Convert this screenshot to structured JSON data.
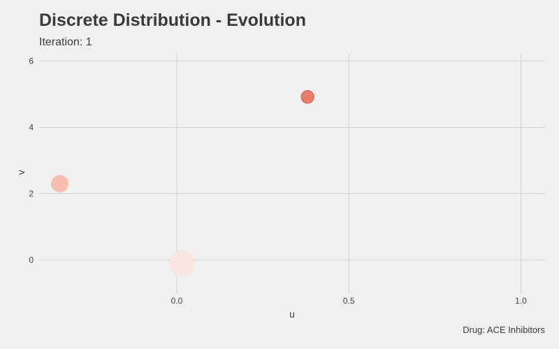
{
  "chart_data": {
    "type": "scatter",
    "title": "Discrete Distribution - Evolution",
    "subtitle": "Iteration: 1",
    "caption": "Drug: ACE Inhibitors",
    "xlabel": "u",
    "ylabel": "v",
    "xlim": [
      -0.4,
      1.07
    ],
    "ylim": [
      -1.0,
      6.2
    ],
    "x_ticks": [
      0.0,
      0.5,
      1.0
    ],
    "x_tick_labels": [
      "0.0",
      "0.5",
      "1.0"
    ],
    "y_ticks": [
      0,
      2,
      4,
      6
    ],
    "y_tick_labels": [
      "0",
      "2",
      "4",
      "6"
    ],
    "grid": true,
    "legend": "none",
    "points": [
      {
        "x": 0.015,
        "y": -0.1,
        "weight": 0.55,
        "color": "#fbe3de"
      },
      {
        "x": -0.34,
        "y": 2.3,
        "weight": 0.2,
        "color": "#f7b8a8"
      },
      {
        "x": 0.38,
        "y": 4.92,
        "weight": 0.08,
        "color": "#e8705c"
      }
    ]
  }
}
